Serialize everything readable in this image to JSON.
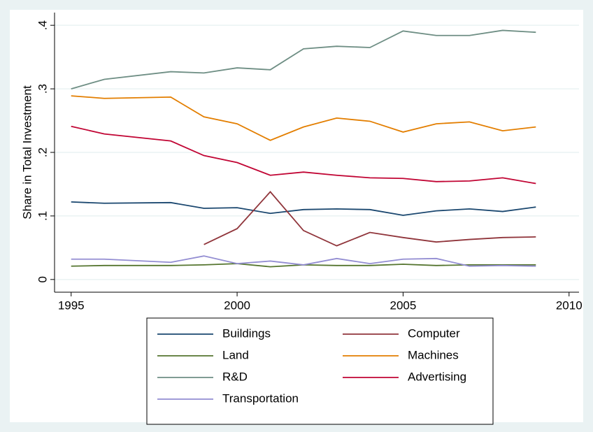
{
  "chart_data": {
    "type": "line",
    "y_label": "Share in Total Investment",
    "x": [
      1995,
      1996,
      1998,
      1999,
      2000,
      2001,
      2002,
      2003,
      2004,
      2005,
      2006,
      2007,
      2008,
      2009
    ],
    "xlim": [
      1994.5,
      2010.3
    ],
    "xticks": [
      1995,
      2000,
      2005,
      2010
    ],
    "ylim": [
      -0.02,
      0.42
    ],
    "yticks": [
      0,
      {
        "value": 0.1,
        "label": ".1"
      },
      {
        "value": 0.2,
        "label": ".2"
      },
      {
        "value": 0.3,
        "label": ".3"
      },
      {
        "value": 0.4,
        "label": ".4"
      }
    ],
    "grid": true,
    "legend": "bottom",
    "series": [
      {
        "name": "Buildings",
        "color": "#1a476f",
        "values": [
          0.122,
          0.12,
          0.121,
          0.112,
          0.113,
          0.104,
          0.11,
          0.111,
          0.11,
          0.101,
          0.108,
          0.111,
          0.107,
          0.114
        ]
      },
      {
        "name": "Computer",
        "color": "#90353b",
        "values": [
          null,
          null,
          null,
          0.055,
          0.08,
          0.138,
          0.077,
          0.053,
          0.074,
          0.066,
          0.059,
          0.063,
          0.066,
          0.067
        ]
      },
      {
        "name": "Land",
        "color": "#55752f",
        "values": [
          0.021,
          0.022,
          0.022,
          0.023,
          0.025,
          0.02,
          0.023,
          0.022,
          0.022,
          0.024,
          0.022,
          0.023,
          0.023,
          0.023
        ]
      },
      {
        "name": "Machines",
        "color": "#e37e00",
        "values": [
          0.289,
          0.285,
          0.287,
          0.256,
          0.245,
          0.219,
          0.24,
          0.254,
          0.249,
          0.232,
          0.245,
          0.248,
          0.234,
          0.24
        ]
      },
      {
        "name": "R&D",
        "color": "#6e8e84",
        "values": [
          0.3,
          0.315,
          0.327,
          0.325,
          0.333,
          0.33,
          0.363,
          0.367,
          0.365,
          0.391,
          0.384,
          0.384,
          0.392,
          0.389
        ]
      },
      {
        "name": "Advertising",
        "color": "#c10534",
        "values": [
          0.241,
          0.229,
          0.218,
          0.195,
          0.184,
          0.164,
          0.169,
          0.164,
          0.16,
          0.159,
          0.154,
          0.155,
          0.16,
          0.151
        ]
      },
      {
        "name": "Transportation",
        "color": "#938dd2",
        "values": [
          0.032,
          0.032,
          0.027,
          0.037,
          0.025,
          0.029,
          0.023,
          0.033,
          0.025,
          0.032,
          0.033,
          0.021,
          0.022,
          0.021
        ]
      }
    ]
  }
}
